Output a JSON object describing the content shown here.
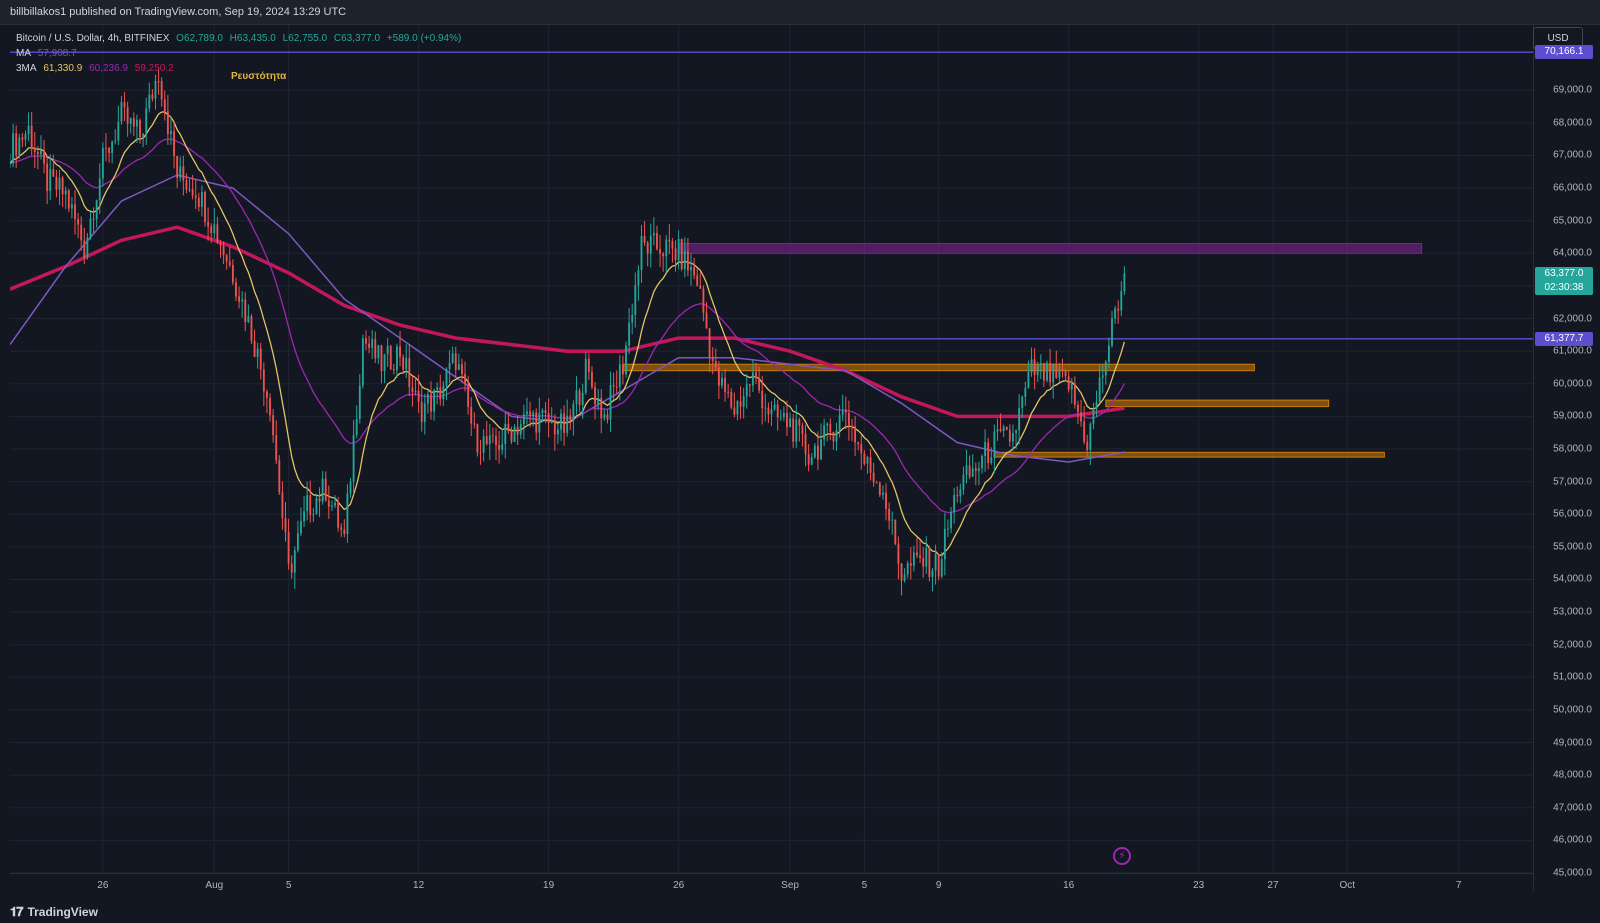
{
  "header": {
    "published_line": "billbillakos1 published on TradingView.com, Sep 19, 2024 13:29 UTC"
  },
  "legend": {
    "symbol": "Bitcoin / U.S. Dollar, 4h, BITFINEX",
    "open": "O62,789.0",
    "high": "H63,435.0",
    "low": "L62,755.0",
    "close": "C63,377.0",
    "change": "+589.0 (+0.94%)",
    "ma_label": "MA",
    "ma_value": "57,908.7",
    "ema_label": "3MA",
    "ema_value1": "61,330.9",
    "ema_value2": "60,236.9",
    "ema_value3": "59,250.2"
  },
  "annotation": "Ρευστότητα",
  "currency": "USD",
  "price_tags": {
    "top_line": "70,166.1",
    "last_price": "63,377.0",
    "countdown": "02:30:38",
    "mid_line": "61,377.7"
  },
  "footer": {
    "brand": "TradingView"
  },
  "colors": {
    "up": "#26a69a",
    "down": "#ef5350",
    "ma": "#7e57c2",
    "ema_fast": "#e3c463",
    "ema_mid": "#9c27b0",
    "ema_slow": "#c2185b",
    "zone_purple": "#9c27b0",
    "zone_orange": "#ff9800",
    "line_purple": "#5b4fcf"
  },
  "chart_data": {
    "type": "candlestick",
    "ylim": [
      45000,
      71000
    ],
    "y_ticks": [
      69000,
      68000,
      67000,
      66000,
      65000,
      64000,
      63000,
      62000,
      61000,
      60000,
      59000,
      58000,
      57000,
      56000,
      55000,
      54000,
      53000,
      52000,
      51000,
      50000,
      49000,
      48000,
      47000,
      46000,
      45000
    ],
    "y_tick_labels": [
      "69,000.0",
      "68,000.0",
      "67,000.0",
      "66,000.0",
      "65,000.0",
      "64,000.0",
      "63,000.0",
      "62,000.0",
      "61,000.0",
      "60,000.0",
      "59,000.0",
      "58,000.0",
      "57,000.0",
      "56,000.0",
      "55,000.0",
      "54,000.0",
      "53,000.0",
      "52,000.0",
      "51,000.0",
      "50,000.0",
      "49,000.0",
      "48,000.0",
      "47,000.0",
      "46,000.0",
      "45,000.0"
    ],
    "x_range_days": [
      "2024-07-21",
      "2024-10-11"
    ],
    "x_ticks": [
      {
        "label": "26",
        "date": "2024-07-26"
      },
      {
        "label": "Aug",
        "date": "2024-08-01"
      },
      {
        "label": "5",
        "date": "2024-08-05"
      },
      {
        "label": "12",
        "date": "2024-08-12"
      },
      {
        "label": "19",
        "date": "2024-08-19"
      },
      {
        "label": "26",
        "date": "2024-08-26"
      },
      {
        "label": "Sep",
        "date": "2024-09-01"
      },
      {
        "label": "5",
        "date": "2024-09-05"
      },
      {
        "label": "9",
        "date": "2024-09-09"
      },
      {
        "label": "16",
        "date": "2024-09-16"
      },
      {
        "label": "23",
        "date": "2024-09-23"
      },
      {
        "label": "27",
        "date": "2024-09-27"
      },
      {
        "label": "Oct",
        "date": "2024-10-01"
      },
      {
        "label": "7",
        "date": "2024-10-07"
      }
    ],
    "close_path": [
      [
        "2024-07-21",
        67200
      ],
      [
        "2024-07-22",
        67800
      ],
      [
        "2024-07-23",
        66200
      ],
      [
        "2024-07-24",
        65800
      ],
      [
        "2024-07-25",
        64200
      ],
      [
        "2024-07-26",
        66800
      ],
      [
        "2024-07-27",
        68200
      ],
      [
        "2024-07-28",
        67600
      ],
      [
        "2024-07-29",
        69600
      ],
      [
        "2024-07-30",
        66400
      ],
      [
        "2024-07-31",
        66000
      ],
      [
        "2024-08-01",
        64800
      ],
      [
        "2024-08-02",
        63400
      ],
      [
        "2024-08-03",
        61600
      ],
      [
        "2024-08-04",
        59400
      ],
      [
        "2024-08-05",
        54200
      ],
      [
        "2024-08-06",
        56200
      ],
      [
        "2024-08-07",
        56800
      ],
      [
        "2024-08-08",
        55200
      ],
      [
        "2024-08-09",
        61400
      ],
      [
        "2024-08-10",
        60600
      ],
      [
        "2024-08-11",
        61000
      ],
      [
        "2024-08-12",
        59200
      ],
      [
        "2024-08-13",
        59600
      ],
      [
        "2024-08-14",
        60800
      ],
      [
        "2024-08-15",
        58400
      ],
      [
        "2024-08-16",
        58000
      ],
      [
        "2024-08-17",
        58600
      ],
      [
        "2024-08-18",
        59000
      ],
      [
        "2024-08-19",
        58800
      ],
      [
        "2024-08-20",
        58600
      ],
      [
        "2024-08-21",
        60400
      ],
      [
        "2024-08-22",
        59000
      ],
      [
        "2024-08-23",
        60600
      ],
      [
        "2024-08-24",
        64200
      ],
      [
        "2024-08-25",
        64200
      ],
      [
        "2024-08-26",
        64000
      ],
      [
        "2024-08-27",
        63200
      ],
      [
        "2024-08-28",
        60200
      ],
      [
        "2024-08-29",
        59200
      ],
      [
        "2024-08-30",
        60200
      ],
      [
        "2024-08-31",
        59000
      ],
      [
        "2024-09-01",
        58800
      ],
      [
        "2024-09-02",
        57800
      ],
      [
        "2024-09-03",
        58400
      ],
      [
        "2024-09-04",
        59200
      ],
      [
        "2024-09-05",
        57600
      ],
      [
        "2024-09-06",
        56800
      ],
      [
        "2024-09-07",
        54200
      ],
      [
        "2024-09-08",
        54600
      ],
      [
        "2024-09-09",
        54400
      ],
      [
        "2024-09-10",
        56800
      ],
      [
        "2024-09-11",
        57400
      ],
      [
        "2024-09-12",
        58200
      ],
      [
        "2024-09-13",
        58400
      ],
      [
        "2024-09-14",
        60400
      ],
      [
        "2024-09-15",
        60200
      ],
      [
        "2024-09-16",
        60000
      ],
      [
        "2024-09-17",
        58200
      ],
      [
        "2024-09-18",
        60800
      ],
      [
        "2024-09-19",
        63377
      ]
    ],
    "series": [
      {
        "name": "MA",
        "values": [
          [
            "2024-07-21",
            61200
          ],
          [
            "2024-07-24",
            63600
          ],
          [
            "2024-07-27",
            65600
          ],
          [
            "2024-07-30",
            66400
          ],
          [
            "2024-08-02",
            66000
          ],
          [
            "2024-08-05",
            64600
          ],
          [
            "2024-08-08",
            62600
          ],
          [
            "2024-08-11",
            61400
          ],
          [
            "2024-08-14",
            60200
          ],
          [
            "2024-08-17",
            59000
          ],
          [
            "2024-08-20",
            58800
          ],
          [
            "2024-08-23",
            59800
          ],
          [
            "2024-08-26",
            60800
          ],
          [
            "2024-08-29",
            60800
          ],
          [
            "2024-09-01",
            60600
          ],
          [
            "2024-09-04",
            60400
          ],
          [
            "2024-09-07",
            59400
          ],
          [
            "2024-09-10",
            58200
          ],
          [
            "2024-09-13",
            57800
          ],
          [
            "2024-09-16",
            57600
          ],
          [
            "2024-09-19",
            57908.7
          ]
        ]
      },
      {
        "name": "3MA",
        "values": [
          [
            "2024-07-21",
            62900
          ],
          [
            "2024-07-24",
            63600
          ],
          [
            "2024-07-27",
            64400
          ],
          [
            "2024-07-30",
            64800
          ],
          [
            "2024-08-02",
            64200
          ],
          [
            "2024-08-05",
            63400
          ],
          [
            "2024-08-08",
            62400
          ],
          [
            "2024-08-11",
            61800
          ],
          [
            "2024-08-14",
            61400
          ],
          [
            "2024-08-17",
            61200
          ],
          [
            "2024-08-20",
            61000
          ],
          [
            "2024-08-23",
            61000
          ],
          [
            "2024-08-26",
            61400
          ],
          [
            "2024-08-29",
            61400
          ],
          [
            "2024-09-01",
            61000
          ],
          [
            "2024-09-04",
            60400
          ],
          [
            "2024-09-07",
            59600
          ],
          [
            "2024-09-10",
            59000
          ],
          [
            "2024-09-13",
            59000
          ],
          [
            "2024-09-16",
            59000
          ],
          [
            "2024-09-19",
            59250.2
          ]
        ]
      }
    ],
    "horizontal_lines": [
      {
        "value": 70166.1,
        "start": "2024-07-21",
        "color": "#5b4fcf"
      },
      {
        "value": 61377.7,
        "start": "2024-08-28",
        "color": "#5b4fcf"
      }
    ],
    "zones": [
      {
        "top": 64300,
        "bottom": 64000,
        "start": "2024-08-26",
        "end": "2024-10-05",
        "color": "#9c27b0"
      },
      {
        "top": 60600,
        "bottom": 60400,
        "start": "2024-08-23",
        "end": "2024-09-26",
        "color": "#ff9800"
      },
      {
        "top": 59500,
        "bottom": 59300,
        "start": "2024-09-18",
        "end": "2024-09-30",
        "color": "#ff9800"
      },
      {
        "top": 57900,
        "bottom": 57750,
        "start": "2024-09-12",
        "end": "2024-10-03",
        "color": "#ff9800"
      }
    ]
  }
}
